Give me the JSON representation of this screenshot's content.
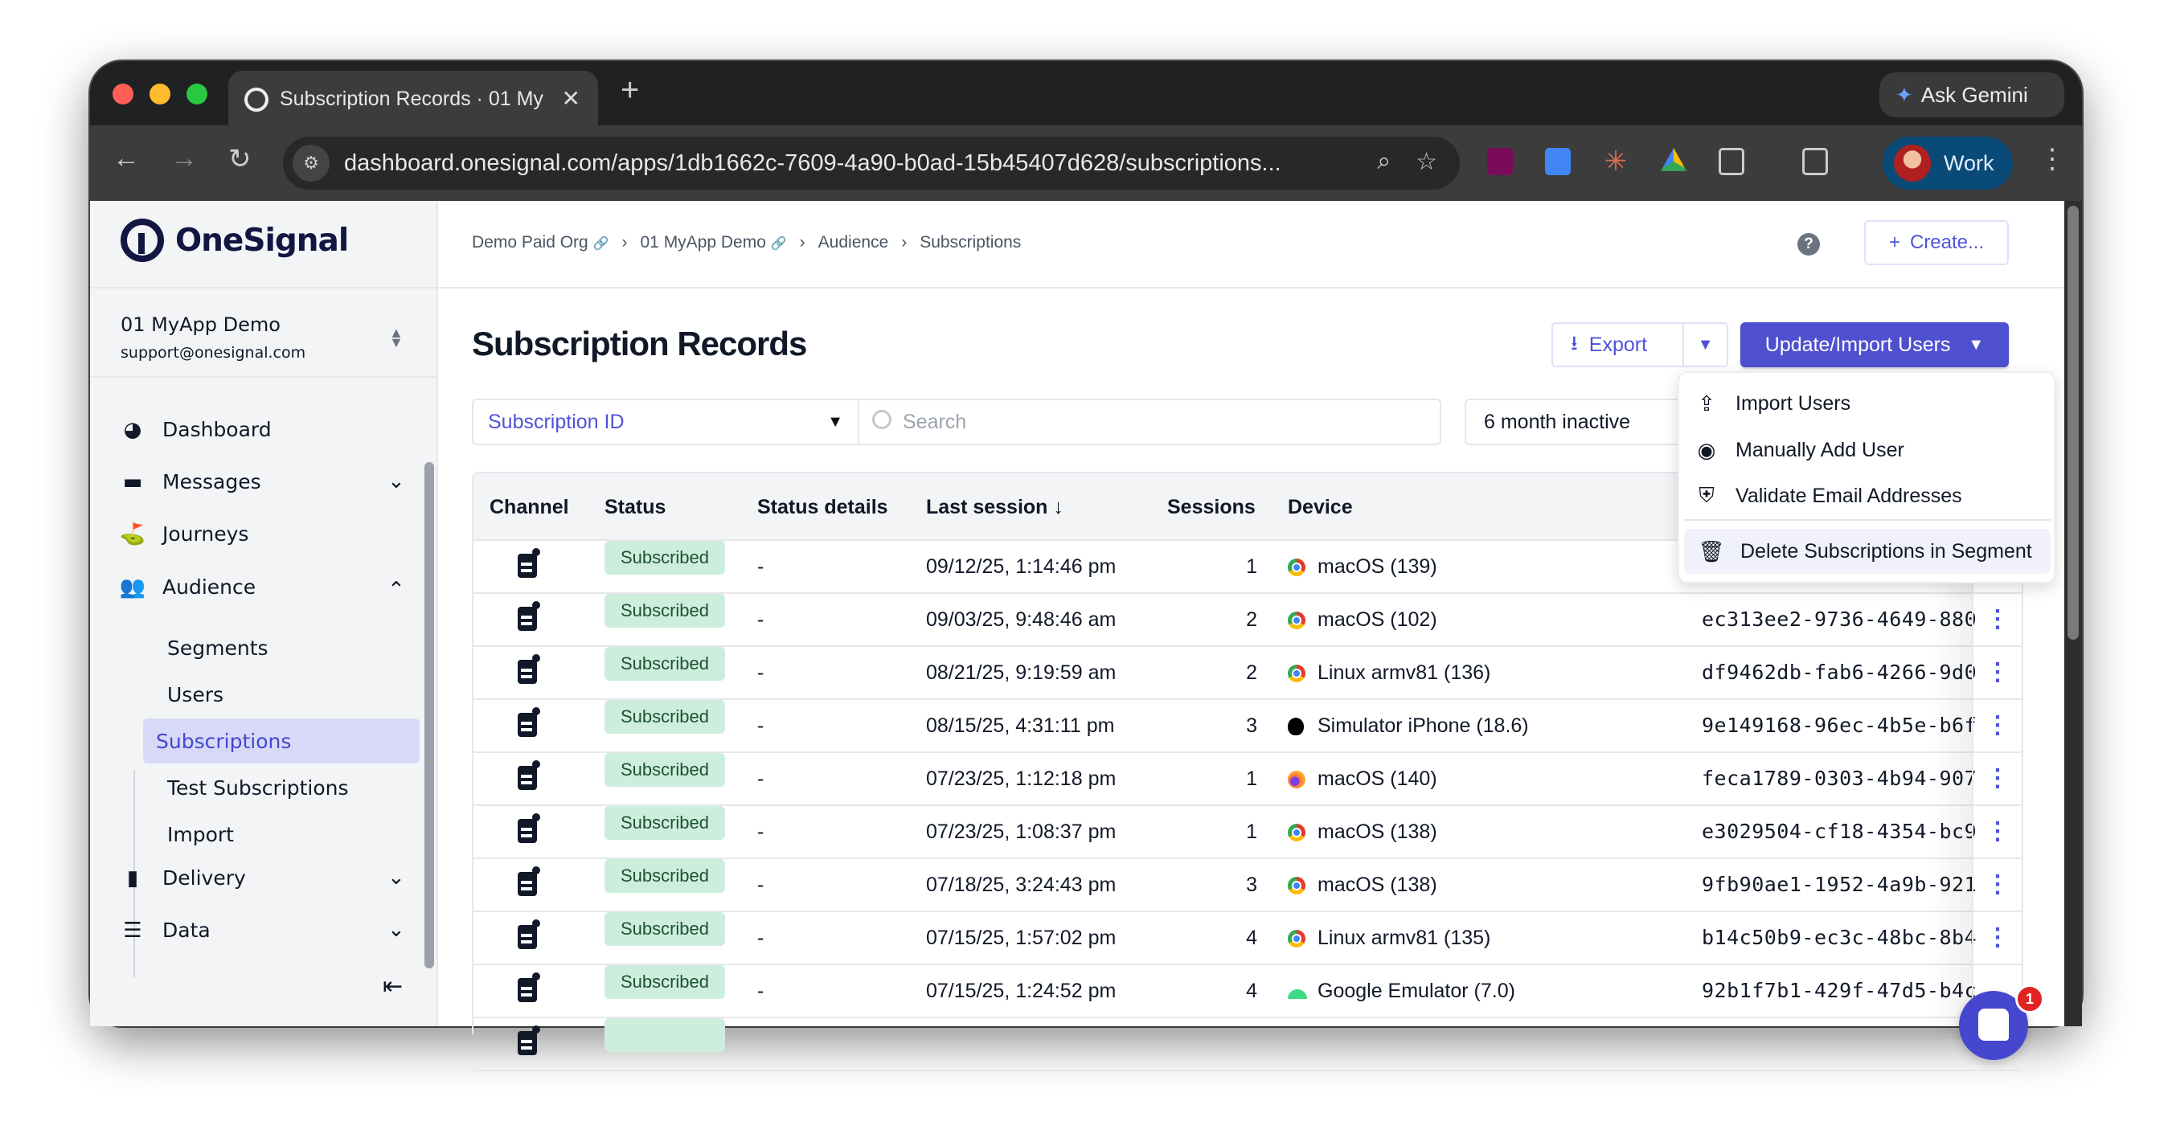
{
  "browser": {
    "tab_title": "Subscription Records · 01 My",
    "url": "dashboard.onesignal.com/apps/1db1662c-7609-4a90-b0ad-15b45407d628/subscriptions...",
    "ask_gemini": "Ask Gemini",
    "profile": "Work"
  },
  "sidebar": {
    "logo": "OneSignal",
    "app_name": "01 MyApp Demo",
    "email": "support@onesignal.com",
    "items": [
      {
        "label": "Dashboard",
        "icon": "gauge-icon"
      },
      {
        "label": "Messages",
        "icon": "message-icon"
      },
      {
        "label": "Journeys",
        "icon": "journey-flag-icon"
      },
      {
        "label": "Audience",
        "icon": "users-icon"
      },
      {
        "label": "Delivery",
        "icon": "bar-chart-icon"
      },
      {
        "label": "Data",
        "icon": "database-icon"
      }
    ],
    "audience_sub": [
      "Segments",
      "Users",
      "Subscriptions",
      "Test Subscriptions",
      "Import"
    ]
  },
  "breadcrumb": [
    "Demo Paid Org",
    "01 MyApp Demo",
    "Audience",
    "Subscriptions"
  ],
  "header": {
    "create": "Create...",
    "help": "?"
  },
  "page": {
    "title": "Subscription Records",
    "export": "Export",
    "update_import": "Update/Import Users",
    "filter_field": "Subscription ID",
    "search_placeholder": "Search",
    "segment": "6 month inactive"
  },
  "menu": [
    "Import Users",
    "Manually Add User",
    "Validate Email Addresses",
    "Delete Subscriptions in Segment"
  ],
  "table": {
    "columns": [
      "Channel",
      "Status",
      "Status details",
      "Last session ↓",
      "Sessions",
      "Device"
    ],
    "rows": [
      {
        "status": "Subscribed",
        "details": "-",
        "last": "09/12/25, 1:14:46 pm",
        "sessions": "1",
        "device": "macOS (139)",
        "browser": "chrome",
        "id": ""
      },
      {
        "status": "Subscribed",
        "details": "-",
        "last": "09/03/25, 9:48:46 am",
        "sessions": "2",
        "device": "macOS (102)",
        "browser": "chrome",
        "id": "ec313ee2-9736-4649-880"
      },
      {
        "status": "Subscribed",
        "details": "-",
        "last": "08/21/25, 9:19:59 am",
        "sessions": "2",
        "device": "Linux armv81 (136)",
        "browser": "chrome",
        "id": "df9462db-fab6-4266-9d0"
      },
      {
        "status": "Subscribed",
        "details": "-",
        "last": "08/15/25, 4:31:11 pm",
        "sessions": "3",
        "device": "Simulator iPhone (18.6)",
        "browser": "apple",
        "id": "9e149168-96ec-4b5e-b6f"
      },
      {
        "status": "Subscribed",
        "details": "-",
        "last": "07/23/25, 1:12:18 pm",
        "sessions": "1",
        "device": "macOS (140)",
        "browser": "firefox",
        "id": "feca1789-0303-4b94-907"
      },
      {
        "status": "Subscribed",
        "details": "-",
        "last": "07/23/25, 1:08:37 pm",
        "sessions": "1",
        "device": "macOS (138)",
        "browser": "chrome",
        "id": "e3029504-cf18-4354-bc9"
      },
      {
        "status": "Subscribed",
        "details": "-",
        "last": "07/18/25, 3:24:43 pm",
        "sessions": "3",
        "device": "macOS (138)",
        "browser": "chrome",
        "id": "9fb90ae1-1952-4a9b-921"
      },
      {
        "status": "Subscribed",
        "details": "-",
        "last": "07/15/25, 1:57:02 pm",
        "sessions": "4",
        "device": "Linux armv81 (135)",
        "browser": "chrome",
        "id": "b14c50b9-ec3c-48bc-8b4"
      },
      {
        "status": "Subscribed",
        "details": "-",
        "last": "07/15/25, 1:24:52 pm",
        "sessions": "4",
        "device": "Google Emulator (7.0)",
        "browser": "android",
        "id": "92b1f7b1-429f-47d5-b4c"
      }
    ]
  },
  "chat": {
    "unread": "1"
  },
  "colors": {
    "accent": "#4f50d0",
    "badge_bg": "#cdeedd",
    "badge_text": "#1f5133"
  }
}
